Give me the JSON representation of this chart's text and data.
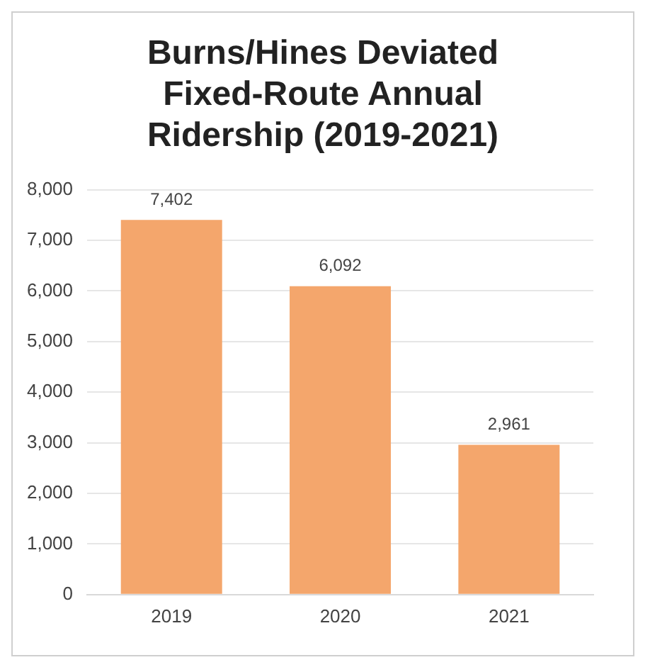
{
  "chart_data": {
    "type": "bar",
    "title": "Burns/Hines Deviated Fixed-Route Annual Ridership (2019-2021)",
    "categories": [
      "2019",
      "2020",
      "2021"
    ],
    "values": [
      7402,
      6092,
      2961
    ],
    "color": "#f4a66c",
    "ylim": [
      0,
      8000
    ],
    "yticks": [
      {
        "value": 0,
        "label": "0"
      },
      {
        "value": 1000,
        "label": "1,000"
      },
      {
        "value": 2000,
        "label": "2,000"
      },
      {
        "value": 3000,
        "label": "3,000"
      },
      {
        "value": 4000,
        "label": "4,000"
      },
      {
        "value": 5000,
        "label": "5,000"
      },
      {
        "value": 6000,
        "label": "6,000"
      },
      {
        "value": 7000,
        "label": "7,000"
      },
      {
        "value": 8000,
        "label": "8,000"
      }
    ],
    "value_labels": [
      "7,402",
      "6,092",
      "2,961"
    ],
    "grid": "y",
    "legend": false
  }
}
